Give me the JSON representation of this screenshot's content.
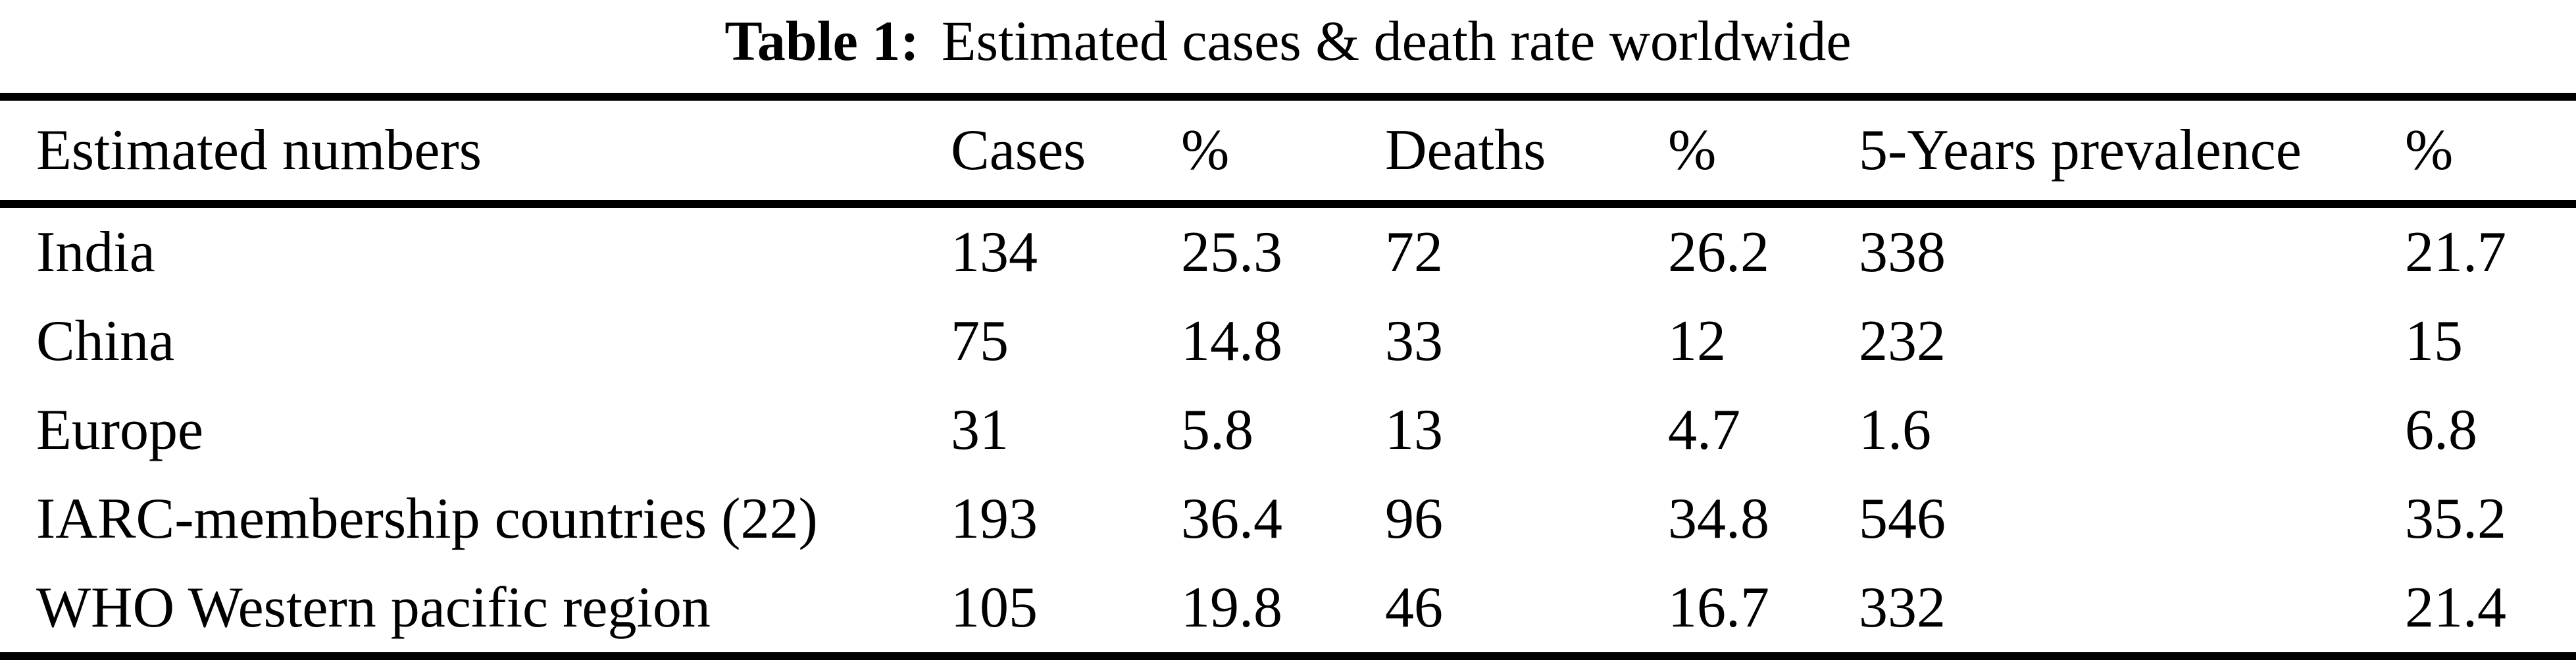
{
  "caption": {
    "label": "Table 1:",
    "text": "Estimated cases & death rate worldwide"
  },
  "table": {
    "columns": [
      "Estimated numbers",
      "Cases",
      "%",
      "Deaths",
      "%",
      "5-Years prevalence",
      "%"
    ],
    "rows": [
      [
        "India",
        "134",
        "25.3",
        "72",
        "26.2",
        "338",
        "21.7"
      ],
      [
        "China",
        "75",
        "14.8",
        "33",
        "12",
        "232",
        "15"
      ],
      [
        "Europe",
        "31",
        "5.8",
        "13",
        "4.7",
        "1.6",
        "6.8"
      ],
      [
        "IARC-membership countries (22)",
        "193",
        "36.4",
        "96",
        "34.8",
        "546",
        "35.2"
      ],
      [
        "WHO Western pacific region",
        "105",
        "19.8",
        "46",
        "16.7",
        "332",
        "21.4"
      ]
    ]
  },
  "chart_data": {
    "type": "table",
    "title": "Table 1: Estimated cases & death rate worldwide",
    "columns": [
      "Estimated numbers",
      "Cases",
      "%",
      "Deaths",
      "%",
      "5-Years prevalence",
      "%"
    ],
    "rows": [
      {
        "region": "India",
        "cases": 134,
        "cases_pct": 25.3,
        "deaths": 72,
        "deaths_pct": 26.2,
        "five_year_prevalence": 338,
        "prevalence_pct": 21.7
      },
      {
        "region": "China",
        "cases": 75,
        "cases_pct": 14.8,
        "deaths": 33,
        "deaths_pct": 12,
        "five_year_prevalence": 232,
        "prevalence_pct": 15
      },
      {
        "region": "Europe",
        "cases": 31,
        "cases_pct": 5.8,
        "deaths": 13,
        "deaths_pct": 4.7,
        "five_year_prevalence": 1.6,
        "prevalence_pct": 6.8
      },
      {
        "region": "IARC-membership countries (22)",
        "cases": 193,
        "cases_pct": 36.4,
        "deaths": 96,
        "deaths_pct": 34.8,
        "five_year_prevalence": 546,
        "prevalence_pct": 35.2
      },
      {
        "region": "WHO Western pacific region",
        "cases": 105,
        "cases_pct": 19.8,
        "deaths": 46,
        "deaths_pct": 16.7,
        "five_year_prevalence": 332,
        "prevalence_pct": 21.4
      }
    ]
  },
  "colors": {
    "background": "#ffffff",
    "text": "#000000",
    "rule": "#000000"
  }
}
